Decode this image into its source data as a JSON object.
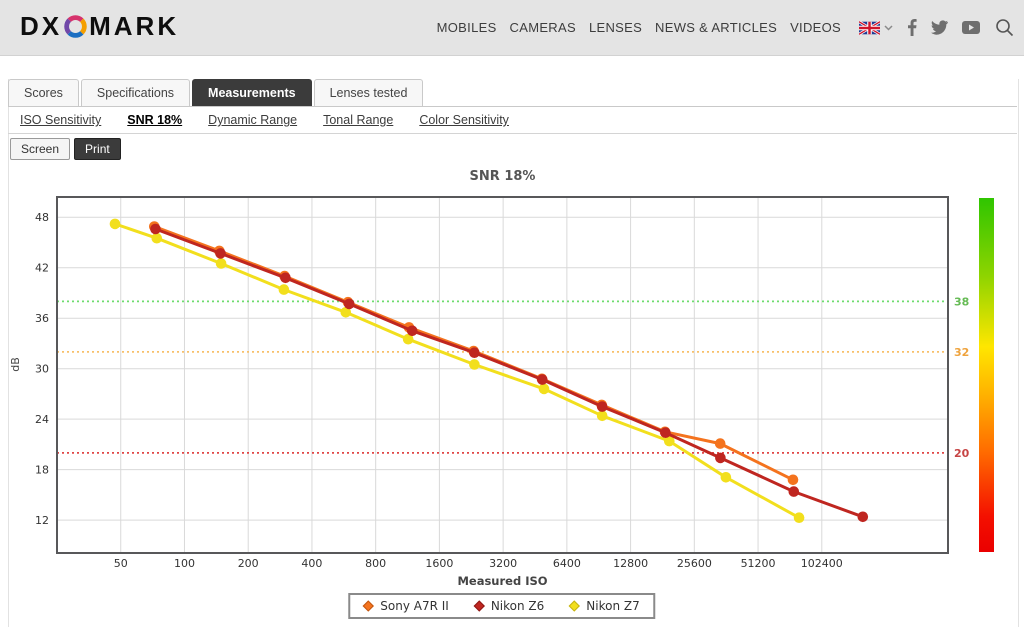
{
  "header": {
    "logo": {
      "prefix": "DX",
      "suffix": "MARK",
      "o_icon": "dxo-color-ring"
    },
    "nav_items": [
      "MOBILES",
      "CAMERAS",
      "LENSES",
      "NEWS & ARTICLES",
      "VIDEOS"
    ],
    "language": {
      "flag_icon": "uk-flag",
      "chevron_icon": "chevron-down"
    },
    "social_icons": [
      "facebook",
      "twitter",
      "youtube"
    ],
    "search_icon": "search"
  },
  "tabs": {
    "items": [
      {
        "label": "Scores",
        "active": false
      },
      {
        "label": "Specifications",
        "active": false
      },
      {
        "label": "Measurements",
        "active": true
      },
      {
        "label": "Lenses tested",
        "active": false
      }
    ]
  },
  "subnav": {
    "items": [
      {
        "label": "ISO Sensitivity",
        "active": false
      },
      {
        "label": "SNR 18%",
        "active": true
      },
      {
        "label": "Dynamic Range",
        "active": false
      },
      {
        "label": "Tonal Range",
        "active": false
      },
      {
        "label": "Color Sensitivity",
        "active": false
      }
    ]
  },
  "view_toggle": {
    "items": [
      {
        "label": "Screen",
        "active": false
      },
      {
        "label": "Print",
        "active": true
      }
    ]
  },
  "chart_data": {
    "type": "line",
    "title": "SNR 18%",
    "xlabel": "Measured ISO",
    "ylabel": "dB",
    "x_scale": "log2",
    "x_ticks": [
      50,
      100,
      200,
      400,
      800,
      1600,
      3200,
      6400,
      12800,
      25600,
      51200,
      102400
    ],
    "y_ticks": [
      12,
      18,
      24,
      30,
      36,
      42,
      48
    ],
    "xlim": [
      25,
      404000
    ],
    "ylim": [
      8.1,
      50.4
    ],
    "grid": true,
    "legend_position": "bottom",
    "grid_color": "#d9d9d9",
    "border_color": "#58585a",
    "reference_lines": [
      {
        "value": 38,
        "label": "38",
        "line_color": "#6edc6e",
        "label_color": "#66bb55"
      },
      {
        "value": 32,
        "label": "32",
        "line_color": "#f8c06a",
        "label_color": "#efa33d"
      },
      {
        "value": 20,
        "label": "20",
        "line_color": "#e04545",
        "label_color": "#c74545"
      }
    ],
    "series": [
      {
        "name": "Sony A7R II",
        "color": "#f4731e",
        "marker_border": "#c05510",
        "points": [
          [
            72,
            46.9
          ],
          [
            146,
            44.0
          ],
          [
            297,
            41.0
          ],
          [
            592,
            37.9
          ],
          [
            1150,
            34.9
          ],
          [
            2320,
            32.1
          ],
          [
            4880,
            28.8
          ],
          [
            9350,
            25.7
          ],
          [
            18600,
            22.5
          ],
          [
            33900,
            21.1
          ],
          [
            74900,
            16.8
          ]
        ]
      },
      {
        "name": "Nikon Z6",
        "color": "#bf2620",
        "marker_border": "#8c1714",
        "points": [
          [
            73,
            46.6
          ],
          [
            148,
            43.7
          ],
          [
            300,
            40.8
          ],
          [
            600,
            37.7
          ],
          [
            1190,
            34.5
          ],
          [
            2340,
            31.9
          ],
          [
            4900,
            28.7
          ],
          [
            9400,
            25.5
          ],
          [
            18700,
            22.4
          ],
          [
            34000,
            19.4
          ],
          [
            75500,
            15.4
          ],
          [
            160000,
            12.4
          ]
        ]
      },
      {
        "name": "Nikon Z7",
        "color": "#f2df1d",
        "marker_border": "#c4b213",
        "points": [
          [
            47,
            47.2
          ],
          [
            74,
            45.5
          ],
          [
            149,
            42.5
          ],
          [
            295,
            39.4
          ],
          [
            578,
            36.7
          ],
          [
            1140,
            33.5
          ],
          [
            2340,
            30.5
          ],
          [
            4990,
            27.6
          ],
          [
            9400,
            24.4
          ],
          [
            19500,
            21.4
          ],
          [
            36100,
            17.1
          ],
          [
            80000,
            12.3
          ]
        ]
      }
    ],
    "draw_order": [
      0,
      2,
      1
    ],
    "gradient_bar": {
      "stops": [
        [
          0,
          "#2fc500"
        ],
        [
          0.22,
          "#8ed400"
        ],
        [
          0.42,
          "#ffe600"
        ],
        [
          0.55,
          "#ffb400"
        ],
        [
          0.72,
          "#ff6a00"
        ],
        [
          0.9,
          "#f41000"
        ],
        [
          1,
          "#ea0000"
        ]
      ]
    }
  }
}
